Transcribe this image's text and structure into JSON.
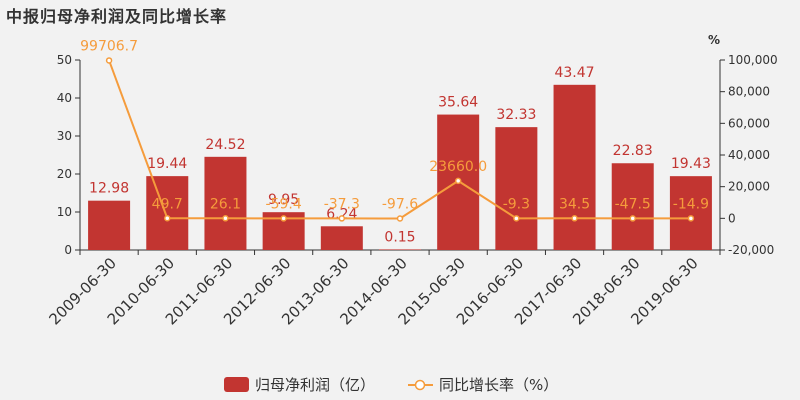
{
  "chart_data": {
    "type": "bar",
    "title": "中报归母净利润及同比增长率",
    "categories": [
      "2009-06-30",
      "2010-06-30",
      "2011-06-30",
      "2012-06-30",
      "2013-06-30",
      "2014-06-30",
      "2015-06-30",
      "2016-06-30",
      "2017-06-30",
      "2018-06-30",
      "2019-06-30"
    ],
    "y_left": {
      "ylim": [
        0,
        50
      ],
      "ticks": [
        0,
        10,
        20,
        30,
        40,
        50
      ]
    },
    "y_right": {
      "ylabel": "%",
      "ylim": [
        -20000,
        100000
      ],
      "ticks": [
        -20000,
        0,
        20000,
        40000,
        60000,
        80000,
        100000
      ],
      "tick_labels": [
        "-20,000",
        "0",
        "20,000",
        "40,000",
        "60,000",
        "80,000",
        "100,000"
      ]
    },
    "series": [
      {
        "name": "归母净利润（亿）",
        "kind": "bar",
        "axis": "left",
        "color": "#c23531",
        "values": [
          12.98,
          19.44,
          24.52,
          9.95,
          6.24,
          0.15,
          35.64,
          32.33,
          43.47,
          22.83,
          19.43
        ],
        "labels": [
          "12.98",
          "19.44",
          "24.52",
          "9.95",
          "6.24",
          "0.15",
          "35.64",
          "32.33",
          "43.47",
          "22.83",
          "19.43"
        ]
      },
      {
        "name": "同比增长率（%）",
        "kind": "line",
        "axis": "right",
        "color": "#f59c3c",
        "values": [
          99706.7,
          49.7,
          26.1,
          -59.4,
          -37.3,
          -97.6,
          23660.0,
          -9.3,
          34.5,
          -47.5,
          -14.9
        ],
        "labels": [
          "99706.7",
          "49.7",
          "26.1",
          "-59.4",
          "-37.3",
          "-97.6",
          "23660.0",
          "-9.3",
          "34.5",
          "-47.5",
          "-14.9"
        ]
      }
    ],
    "grid": false,
    "legend": "bottom-center"
  }
}
